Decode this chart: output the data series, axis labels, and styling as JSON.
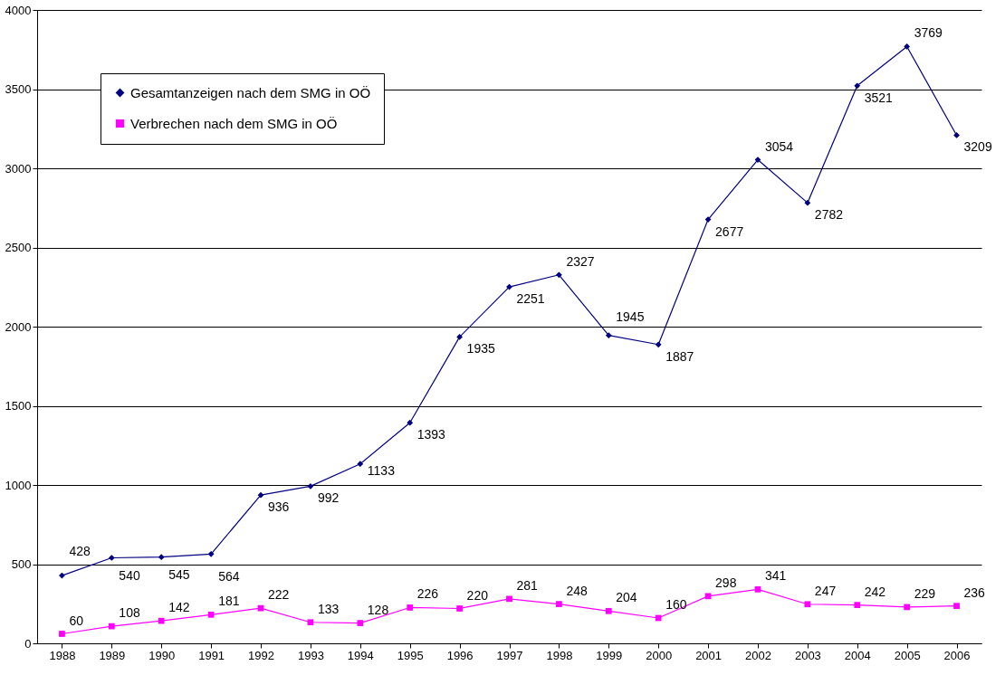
{
  "chart_data": {
    "type": "line",
    "categories": [
      "1988",
      "1989",
      "1990",
      "1991",
      "1992",
      "1993",
      "1994",
      "1995",
      "1996",
      "1997",
      "1998",
      "1999",
      "2000",
      "2001",
      "2002",
      "2003",
      "2004",
      "2005",
      "2006"
    ],
    "series": [
      {
        "name": "Gesamtanzeigen nach dem SMG in OÖ",
        "color": "#000080",
        "marker": "diamond",
        "values": [
          428,
          540,
          545,
          564,
          936,
          992,
          1133,
          1393,
          1935,
          2251,
          2327,
          1945,
          1887,
          2677,
          3054,
          2782,
          3521,
          3769,
          3209
        ]
      },
      {
        "name": "Verbrechen nach dem SMG in OÖ",
        "color": "#ff00ff",
        "marker": "square",
        "values": [
          60,
          108,
          142,
          181,
          222,
          133,
          128,
          226,
          220,
          281,
          248,
          204,
          160,
          298,
          341,
          247,
          242,
          229,
          236
        ]
      }
    ],
    "ylim": [
      0,
      4000
    ],
    "yticks": [
      0,
      500,
      1000,
      1500,
      2000,
      2500,
      3000,
      3500,
      4000
    ],
    "grid": "y",
    "legend": "top left",
    "data_labels": true,
    "line_style": "solid"
  }
}
